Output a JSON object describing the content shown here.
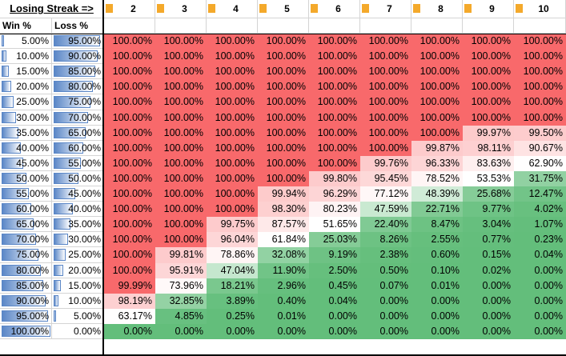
{
  "header": {
    "title": "Losing Streak =>",
    "win_label": "Win %",
    "loss_label": "Loss %"
  },
  "streaks": [
    "2",
    "3",
    "4",
    "5",
    "6",
    "7",
    "8",
    "9",
    "10"
  ],
  "win_pct": [
    "5.00%",
    "10.00%",
    "15.00%",
    "20.00%",
    "25.00%",
    "30.00%",
    "35.00%",
    "40.00%",
    "45.00%",
    "50.00%",
    "55.00%",
    "60.00%",
    "65.00%",
    "70.00%",
    "75.00%",
    "80.00%",
    "85.00%",
    "90.00%",
    "95.00%",
    "100.00%"
  ],
  "win_fill": [
    0.05,
    0.1,
    0.15,
    0.2,
    0.25,
    0.3,
    0.35,
    0.4,
    0.45,
    0.5,
    0.55,
    0.6,
    0.65,
    0.7,
    0.75,
    0.8,
    0.85,
    0.9,
    0.95,
    1.0
  ],
  "loss_pct": [
    "95.00%",
    "90.00%",
    "85.00%",
    "80.00%",
    "75.00%",
    "70.00%",
    "65.00%",
    "60.00%",
    "55.00%",
    "50.00%",
    "45.00%",
    "40.00%",
    "35.00%",
    "30.00%",
    "25.00%",
    "20.00%",
    "15.00%",
    "10.00%",
    "5.00%",
    "0.00%"
  ],
  "loss_fill": [
    0.95,
    0.9,
    0.85,
    0.8,
    0.75,
    0.7,
    0.65,
    0.6,
    0.55,
    0.5,
    0.45,
    0.4,
    0.35,
    0.3,
    0.25,
    0.2,
    0.15,
    0.1,
    0.05,
    0.0
  ],
  "values": [
    [
      100.0,
      100.0,
      100.0,
      100.0,
      100.0,
      100.0,
      100.0,
      100.0,
      100.0
    ],
    [
      100.0,
      100.0,
      100.0,
      100.0,
      100.0,
      100.0,
      100.0,
      100.0,
      100.0
    ],
    [
      100.0,
      100.0,
      100.0,
      100.0,
      100.0,
      100.0,
      100.0,
      100.0,
      100.0
    ],
    [
      100.0,
      100.0,
      100.0,
      100.0,
      100.0,
      100.0,
      100.0,
      100.0,
      100.0
    ],
    [
      100.0,
      100.0,
      100.0,
      100.0,
      100.0,
      100.0,
      100.0,
      100.0,
      100.0
    ],
    [
      100.0,
      100.0,
      100.0,
      100.0,
      100.0,
      100.0,
      100.0,
      100.0,
      100.0
    ],
    [
      100.0,
      100.0,
      100.0,
      100.0,
      100.0,
      100.0,
      100.0,
      99.97,
      99.5
    ],
    [
      100.0,
      100.0,
      100.0,
      100.0,
      100.0,
      100.0,
      99.87,
      98.11,
      90.67
    ],
    [
      100.0,
      100.0,
      100.0,
      100.0,
      100.0,
      99.76,
      96.33,
      83.63,
      62.9
    ],
    [
      100.0,
      100.0,
      100.0,
      100.0,
      99.8,
      95.45,
      78.52,
      53.53,
      31.75
    ],
    [
      100.0,
      100.0,
      100.0,
      99.94,
      96.29,
      77.12,
      48.39,
      25.68,
      12.47
    ],
    [
      100.0,
      100.0,
      100.0,
      98.3,
      80.23,
      47.59,
      22.71,
      9.77,
      4.02
    ],
    [
      100.0,
      100.0,
      99.75,
      87.57,
      51.65,
      22.4,
      8.47,
      3.04,
      1.07
    ],
    [
      100.0,
      100.0,
      96.04,
      61.84,
      25.03,
      8.26,
      2.55,
      0.77,
      0.23
    ],
    [
      100.0,
      99.81,
      78.86,
      32.08,
      9.19,
      2.38,
      0.6,
      0.15,
      0.04
    ],
    [
      100.0,
      95.91,
      47.04,
      11.9,
      2.5,
      0.5,
      0.1,
      0.02,
      0.0
    ],
    [
      99.99,
      73.96,
      18.21,
      2.96,
      0.45,
      0.07,
      0.01,
      0.0,
      0.0
    ],
    [
      98.19,
      32.85,
      3.89,
      0.4,
      0.04,
      0.0,
      0.0,
      0.0,
      0.0
    ],
    [
      63.17,
      4.85,
      0.25,
      0.01,
      0.0,
      0.0,
      0.0,
      0.0,
      0.0
    ],
    [
      0.0,
      0.0,
      0.0,
      0.0,
      0.0,
      0.0,
      0.0,
      0.0,
      0.0
    ]
  ],
  "colors": {
    "high": "#f8696b",
    "mid": "#ffffff",
    "low": "#63be7b",
    "tab": "#f4a92b",
    "bar": "#5b87c7"
  }
}
